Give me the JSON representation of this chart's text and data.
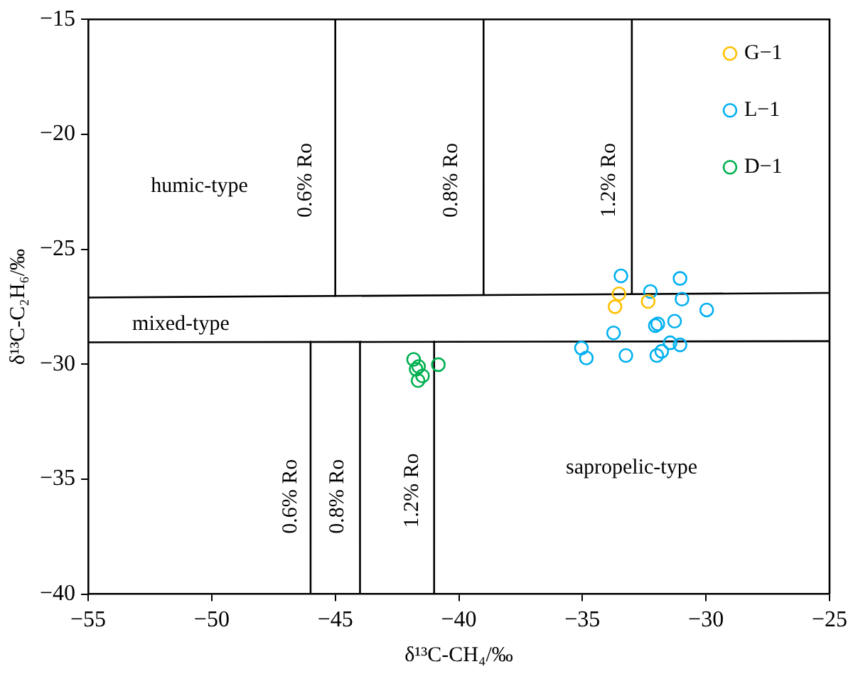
{
  "chart_data": {
    "type": "scatter",
    "xlabel": "δ¹³C-CH₄/‰",
    "ylabel": "δ¹³C-C₂H₆/‰",
    "xlim": [
      -55,
      -25
    ],
    "xticks": [
      -55,
      -50,
      -45,
      -40,
      -35,
      -30,
      -25
    ],
    "ylim": [
      -40,
      -15
    ],
    "yticks": [
      -40,
      -35,
      -30,
      -25,
      -20,
      -15
    ],
    "grid": false,
    "legend": "top right",
    "marker": "circle",
    "series": [
      {
        "name": "G−1",
        "color": "#ffc000",
        "x": [
          -33.52,
          -33.68,
          -32.34
        ],
        "values": [
          -26.94,
          -27.5,
          -27.27
        ]
      },
      {
        "name": "L−1",
        "color": "#00b0f0",
        "x": [
          -33.44,
          -31.05,
          -32.25,
          -30.97,
          -29.97,
          -31.27,
          -32.05,
          -31.95,
          -33.74,
          -35.04,
          -34.84,
          -33.24,
          -31.45,
          -31.05,
          -31.79,
          -31.99
        ],
        "values": [
          -26.16,
          -26.27,
          -26.84,
          -27.17,
          -27.64,
          -28.13,
          -28.32,
          -28.25,
          -28.64,
          -29.3,
          -29.73,
          -29.62,
          -29.07,
          -29.16,
          -29.44,
          -29.62
        ]
      },
      {
        "name": "D−1",
        "color": "#00b050",
        "x": [
          -41.83,
          -41.63,
          -41.73,
          -41.47,
          -41.65,
          -40.83
        ],
        "values": [
          -29.79,
          -30.1,
          -30.22,
          -30.51,
          -30.71,
          -30.02
        ]
      },
      {
        "type": "line",
        "color": "#000000",
        "marker": "none",
        "x": [
          -55,
          -25
        ],
        "values": [
          -27.1,
          -26.9
        ]
      },
      {
        "type": "line",
        "color": "#000000",
        "marker": "none",
        "x": [
          -55,
          -25
        ],
        "values": [
          -29.05,
          -29.0
        ]
      },
      {
        "type": "line",
        "color": "#000000",
        "marker": "none",
        "x": [
          -45,
          -45
        ],
        "values": [
          -15,
          -27.03
        ]
      },
      {
        "type": "line",
        "color": "#000000",
        "marker": "none",
        "x": [
          -39,
          -39
        ],
        "values": [
          -15,
          -26.99
        ]
      },
      {
        "type": "line",
        "color": "#000000",
        "marker": "none",
        "x": [
          -33,
          -33
        ],
        "values": [
          -15,
          -26.95
        ]
      },
      {
        "type": "line",
        "color": "#000000",
        "marker": "none",
        "x": [
          -46,
          -46
        ],
        "values": [
          -29.03,
          -40
        ]
      },
      {
        "type": "line",
        "color": "#000000",
        "marker": "none",
        "x": [
          -44,
          -44
        ],
        "values": [
          -29.03,
          -40
        ]
      },
      {
        "type": "line",
        "color": "#000000",
        "marker": "none",
        "x": [
          -41,
          -41
        ],
        "values": [
          -29.02,
          -40
        ]
      }
    ],
    "annotations": [
      "humic-type",
      "mixed-type",
      "sapropelic-type",
      "0.6% Ro",
      "0.8% Ro",
      "1.2% Ro",
      "0.6% Ro",
      "0.8% Ro",
      "1.2% Ro"
    ]
  }
}
